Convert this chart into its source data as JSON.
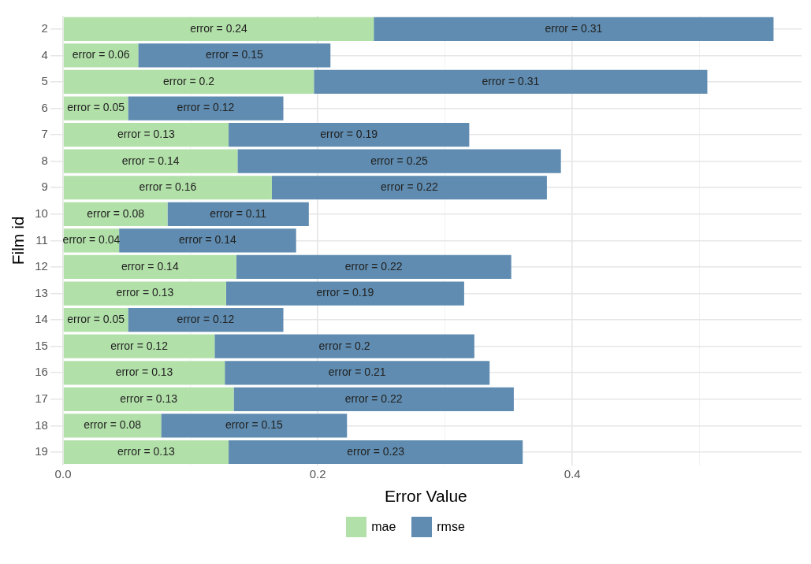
{
  "chart_data": {
    "type": "bar",
    "orientation": "horizontal",
    "stacked": true,
    "xlabel": "Error Value",
    "ylabel": "Film id",
    "categories": [
      "2",
      "4",
      "5",
      "6",
      "7",
      "8",
      "9",
      "10",
      "11",
      "12",
      "13",
      "14",
      "15",
      "16",
      "17",
      "18",
      "19"
    ],
    "series": [
      {
        "name": "mae",
        "color": "#b2e0a9",
        "values": [
          0.244,
          0.059,
          0.197,
          0.051,
          0.13,
          0.137,
          0.164,
          0.082,
          0.044,
          0.136,
          0.128,
          0.051,
          0.119,
          0.127,
          0.134,
          0.077,
          0.13
        ],
        "value_labels": [
          "error = 0.24",
          "error = 0.06",
          "error = 0.2",
          "error = 0.05",
          "error = 0.13",
          "error = 0.14",
          "error = 0.16",
          "error = 0.08",
          "error = 0.04",
          "error = 0.14",
          "error = 0.13",
          "error = 0.05",
          "error = 0.12",
          "error = 0.13",
          "error = 0.13",
          "error = 0.08",
          "error = 0.13"
        ]
      },
      {
        "name": "rmse",
        "color": "#5f8cb0",
        "values": [
          0.314,
          0.151,
          0.309,
          0.122,
          0.189,
          0.254,
          0.216,
          0.111,
          0.139,
          0.216,
          0.187,
          0.122,
          0.204,
          0.208,
          0.22,
          0.146,
          0.231
        ],
        "value_labels": [
          "error = 0.31",
          "error = 0.15",
          "error = 0.31",
          "error = 0.12",
          "error = 0.19",
          "error = 0.25",
          "error = 0.22",
          "error = 0.11",
          "error = 0.14",
          "error = 0.22",
          "error = 0.19",
          "error = 0.12",
          "error = 0.2",
          "error = 0.21",
          "error = 0.22",
          "error = 0.15",
          "error = 0.23"
        ]
      }
    ],
    "xlim": [
      -0.01,
      0.58
    ],
    "xticks": [
      {
        "value": 0,
        "label": "0.0"
      },
      {
        "value": 0.1,
        "label": null
      },
      {
        "value": 0.2,
        "label": "0.2"
      },
      {
        "value": 0.3,
        "label": null
      },
      {
        "value": 0.4,
        "label": "0.4"
      },
      {
        "value": 0.5,
        "label": null
      }
    ],
    "grid": true,
    "legend": "bottom"
  }
}
